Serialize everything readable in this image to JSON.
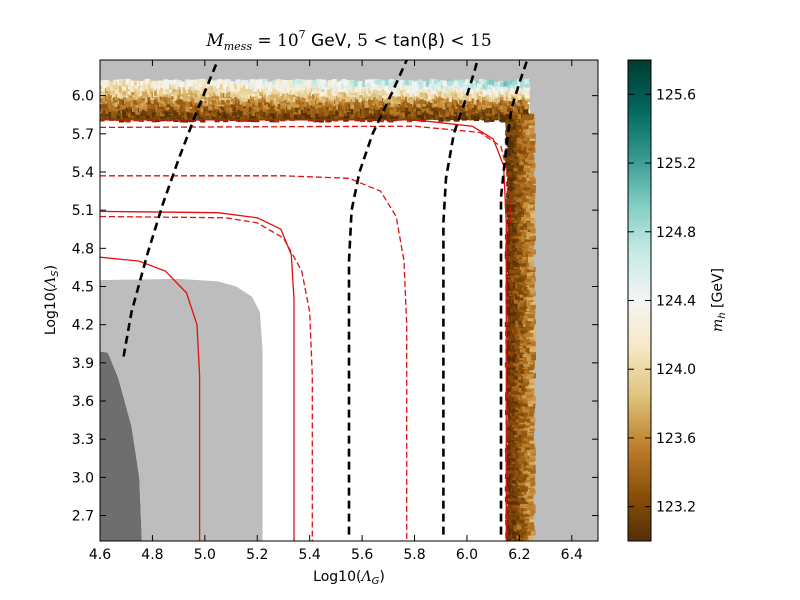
{
  "chart_data": {
    "type": "heatmap",
    "title": "M_mess = 10^7  GeV, 5 < tan(β) < 15",
    "title_parts": {
      "mass_text": "M",
      "mass_sub": "mess",
      "eq_text": " = 10",
      "exp_text": "7",
      "gev_text": "  GeV, ",
      "tan_lo": "5 < ",
      "tan_text": "tan(β)",
      "tan_hi": " < 15"
    },
    "xlabel": "Log10(Λ_G)",
    "xlabel_parts": {
      "pre": "Log10(",
      "sym": "Λ",
      "sub": "G",
      "post": ")"
    },
    "ylabel": "Log10(Λ_S)",
    "ylabel_parts": {
      "pre": "Log10(",
      "sym": "Λ",
      "sub": "S",
      "post": ")"
    },
    "xlim": [
      4.6,
      6.5
    ],
    "ylim": [
      2.5,
      6.28
    ],
    "x_ticks": [
      "4.6",
      "4.8",
      "5.0",
      "5.2",
      "5.4",
      "5.6",
      "5.8",
      "6.0",
      "6.2",
      "6.4"
    ],
    "y_ticks": [
      "2.7",
      "3.0",
      "3.3",
      "3.6",
      "3.9",
      "4.2",
      "4.5",
      "4.8",
      "5.1",
      "5.4",
      "5.7",
      "6.0"
    ],
    "colorbar": {
      "label": "m_h [GeV]",
      "label_parts": {
        "sym": "m",
        "sub": "h",
        "unit": " [GeV]"
      },
      "range": [
        123.0,
        125.8
      ],
      "ticks": [
        "123.2",
        "123.6",
        "124.0",
        "124.4",
        "124.8",
        "125.2",
        "125.6"
      ],
      "colors": [
        "#543005",
        "#8c510a",
        "#bf812d",
        "#dfc27d",
        "#f6e8c3",
        "#f5f5f5",
        "#c7eae5",
        "#80cdc1",
        "#35978f",
        "#01665e",
        "#003c30"
      ]
    },
    "regions": [
      {
        "name": "excluded-dark",
        "color": "#6e6e6e",
        "points": [
          [
            4.6,
            3.99
          ],
          [
            4.63,
            3.98
          ],
          [
            4.67,
            3.78
          ],
          [
            4.72,
            3.4
          ],
          [
            4.75,
            3.0
          ],
          [
            4.76,
            2.5
          ],
          [
            4.6,
            2.5
          ]
        ]
      },
      {
        "name": "excluded-light",
        "color": "#bdbdbd",
        "points": [
          [
            4.6,
            4.55
          ],
          [
            4.9,
            4.56
          ],
          [
            5.05,
            4.54
          ],
          [
            5.12,
            4.5
          ],
          [
            5.18,
            4.42
          ],
          [
            5.21,
            4.3
          ],
          [
            5.22,
            4.0
          ],
          [
            5.22,
            2.5
          ],
          [
            4.76,
            2.5
          ],
          [
            4.75,
            3.0
          ],
          [
            4.72,
            3.4
          ],
          [
            4.67,
            3.78
          ],
          [
            4.63,
            3.98
          ],
          [
            4.6,
            3.99
          ]
        ]
      },
      {
        "name": "excluded-right",
        "color": "#bdbdbd",
        "points": [
          [
            6.24,
            2.5
          ],
          [
            6.24,
            5.97
          ],
          [
            6.22,
            6.06
          ],
          [
            6.12,
            6.08
          ],
          [
            4.6,
            6.08
          ],
          [
            4.6,
            6.28
          ],
          [
            6.5,
            6.28
          ],
          [
            6.5,
            2.5
          ]
        ]
      }
    ],
    "red_solid_curves": [
      {
        "name": "contour-1",
        "points": [
          [
            4.6,
            4.73
          ],
          [
            4.75,
            4.7
          ],
          [
            4.85,
            4.62
          ],
          [
            4.93,
            4.45
          ],
          [
            4.97,
            4.2
          ],
          [
            4.98,
            3.8
          ],
          [
            4.98,
            2.5
          ]
        ]
      },
      {
        "name": "contour-2",
        "points": [
          [
            4.6,
            5.09
          ],
          [
            5.05,
            5.08
          ],
          [
            5.2,
            5.04
          ],
          [
            5.29,
            4.95
          ],
          [
            5.33,
            4.75
          ],
          [
            5.34,
            4.4
          ],
          [
            5.34,
            2.5
          ]
        ]
      },
      {
        "name": "contour-3",
        "points": [
          [
            4.6,
            5.81
          ],
          [
            5.8,
            5.81
          ],
          [
            6.02,
            5.76
          ],
          [
            6.1,
            5.66
          ],
          [
            6.14,
            5.45
          ],
          [
            6.15,
            5.0
          ],
          [
            6.15,
            2.5
          ]
        ]
      }
    ],
    "red_dashed_curves": [
      {
        "name": "contour-4",
        "points": [
          [
            4.6,
            5.05
          ],
          [
            5.08,
            5.04
          ],
          [
            5.2,
            5.0
          ],
          [
            5.3,
            4.88
          ],
          [
            5.37,
            4.62
          ],
          [
            5.4,
            4.3
          ],
          [
            5.41,
            3.8
          ],
          [
            5.41,
            2.5
          ]
        ]
      },
      {
        "name": "contour-5",
        "points": [
          [
            4.6,
            5.37
          ],
          [
            5.3,
            5.37
          ],
          [
            5.55,
            5.35
          ],
          [
            5.67,
            5.25
          ],
          [
            5.73,
            5.05
          ],
          [
            5.76,
            4.7
          ],
          [
            5.77,
            4.2
          ],
          [
            5.77,
            2.5
          ]
        ]
      },
      {
        "name": "contour-6",
        "points": [
          [
            4.6,
            5.75
          ],
          [
            5.8,
            5.76
          ],
          [
            6.05,
            5.71
          ],
          [
            6.13,
            5.6
          ],
          [
            6.16,
            5.35
          ],
          [
            6.17,
            4.9
          ],
          [
            6.17,
            2.5
          ]
        ]
      }
    ],
    "black_dashed_curves": [
      {
        "name": "tanb-contour-1",
        "points": [
          [
            4.69,
            3.95
          ],
          [
            4.72,
            4.3
          ],
          [
            4.78,
            4.75
          ],
          [
            4.84,
            5.15
          ],
          [
            4.9,
            5.5
          ],
          [
            4.97,
            5.88
          ],
          [
            5.03,
            6.18
          ],
          [
            5.05,
            6.28
          ]
        ]
      },
      {
        "name": "tanb-contour-2",
        "points": [
          [
            5.55,
            2.55
          ],
          [
            5.55,
            4.7
          ],
          [
            5.56,
            5.1
          ],
          [
            5.59,
            5.4
          ],
          [
            5.64,
            5.7
          ],
          [
            5.72,
            6.05
          ],
          [
            5.77,
            6.28
          ]
        ]
      },
      {
        "name": "tanb-contour-3",
        "points": [
          [
            5.91,
            2.55
          ],
          [
            5.91,
            5.0
          ],
          [
            5.92,
            5.35
          ],
          [
            5.95,
            5.7
          ],
          [
            6.0,
            6.0
          ],
          [
            6.03,
            6.2
          ],
          [
            6.04,
            6.28
          ]
        ]
      },
      {
        "name": "tanb-contour-4",
        "points": [
          [
            6.13,
            2.55
          ],
          [
            6.13,
            5.2
          ],
          [
            6.15,
            5.6
          ],
          [
            6.17,
            5.9
          ],
          [
            6.2,
            6.1
          ],
          [
            6.23,
            6.28
          ]
        ]
      }
    ]
  }
}
